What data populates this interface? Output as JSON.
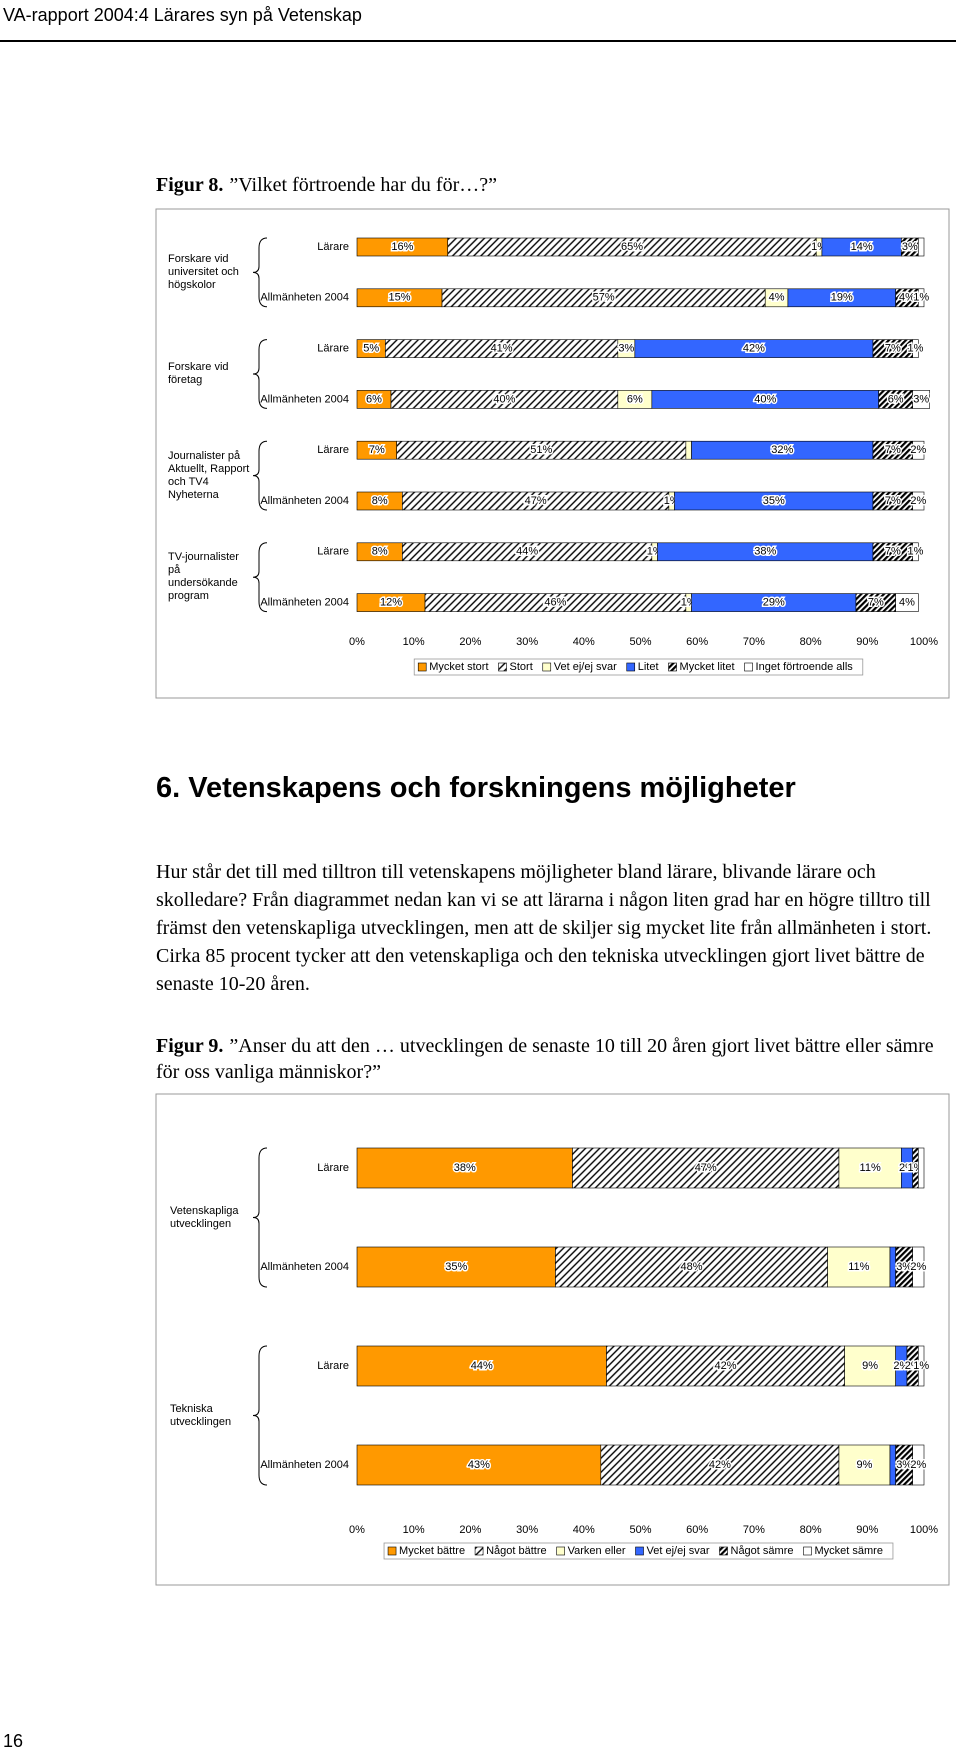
{
  "header": {
    "title": "VA-rapport 2004:4 Lärares syn på Vetenskap"
  },
  "figure_8": {
    "label": "Figur 8.",
    "caption": "”Vilket förtroende har du för…?”"
  },
  "chart_data": [
    {
      "type": "bar",
      "orientation": "horizontal",
      "stacked": true,
      "categories": [
        "Lärare",
        "Allmänheten 2004",
        "Lärare",
        "Allmänheten 2004",
        "Lärare",
        "Allmänheten 2004",
        "Lärare",
        "Allmänheten 2004"
      ],
      "group_labels": [
        "Forskare vid universitet och högskolor",
        "Forskare vid företag",
        "Journalister på Aktuellt, Rapport och TV4 Nyheterna",
        "TV-journalister på undersökande program"
      ],
      "series": [
        {
          "name": "Mycket stort",
          "color": "#ff9900",
          "values": [
            16,
            15,
            5,
            6,
            7,
            8,
            8,
            12
          ],
          "value_labels": [
            "16%",
            "15%",
            "5%",
            "6%",
            "7%",
            "8%",
            "8%",
            "12%"
          ]
        },
        {
          "name": "Stort",
          "color": "#000000",
          "pattern": "hatch",
          "values": [
            65,
            57,
            41,
            40,
            51,
            47,
            44,
            46
          ],
          "value_labels": [
            "65%",
            "57%",
            "41%",
            "40%",
            "51%",
            "47%",
            "44%",
            "46%"
          ]
        },
        {
          "name": "Vet ej/ej svar",
          "color": "#ffffcc",
          "values": [
            1,
            4,
            3,
            6,
            1,
            1,
            1,
            1
          ],
          "value_labels": [
            "1%",
            "4%",
            "3%",
            "6%",
            null,
            "1%",
            "1%",
            "1%"
          ]
        },
        {
          "name": "Litet",
          "color": "#3366ff",
          "values": [
            14,
            19,
            42,
            40,
            32,
            35,
            38,
            29
          ],
          "value_labels": [
            "14%",
            "19%",
            "42%",
            "40%",
            "32%",
            "35%",
            "38%",
            "29%"
          ]
        },
        {
          "name": "Mycket litet",
          "color": "#000000",
          "pattern": "hatch-dense",
          "values": [
            3,
            4,
            7,
            6,
            7,
            7,
            7,
            7
          ],
          "value_labels": [
            "3%",
            "4%",
            "7%",
            "6%",
            "7%",
            "7%",
            "7%",
            "7%"
          ]
        },
        {
          "name": "Inget förtroende alls",
          "color": "#ffffff",
          "values": [
            1,
            1,
            1,
            3,
            2,
            2,
            1,
            4
          ],
          "value_labels": [
            null,
            "1%",
            "1%",
            "3%",
            "2%",
            "2%",
            "1%",
            "4%"
          ]
        }
      ],
      "xlim": [
        0,
        100
      ],
      "xticks": [
        {
          "value": 0,
          "label": "0%"
        },
        {
          "value": 10,
          "label": "10%"
        },
        {
          "value": 20,
          "label": "20%"
        },
        {
          "value": 30,
          "label": "30%"
        },
        {
          "value": 40,
          "label": "40%"
        },
        {
          "value": 50,
          "label": "50%"
        },
        {
          "value": 60,
          "label": "60%"
        },
        {
          "value": 70,
          "label": "70%"
        },
        {
          "value": 80,
          "label": "80%"
        },
        {
          "value": 90,
          "label": "90%"
        },
        {
          "value": 100,
          "label": "100%"
        }
      ],
      "legend": "bottom"
    },
    {
      "type": "bar",
      "orientation": "horizontal",
      "stacked": true,
      "categories": [
        "Lärare",
        "Allmänheten 2004",
        "Lärare",
        "Allmänheten 2004"
      ],
      "group_labels": [
        "Vetenskapliga utvecklingen",
        "Tekniska utvecklingen"
      ],
      "series": [
        {
          "name": "Mycket bättre",
          "color": "#ff9900",
          "values": [
            38,
            35,
            44,
            43
          ],
          "value_labels": [
            "38%",
            "35%",
            "44%",
            "43%"
          ]
        },
        {
          "name": "Något bättre",
          "color": "#000000",
          "pattern": "hatch",
          "values": [
            47,
            48,
            42,
            42
          ],
          "value_labels": [
            "47%",
            "48%",
            "42%",
            "42%"
          ]
        },
        {
          "name": "Varken eller",
          "color": "#ffffcc",
          "values": [
            11,
            11,
            9,
            9
          ],
          "value_labels": [
            "11%",
            "11%",
            "9%",
            "9%"
          ]
        },
        {
          "name": "Vet ej/ej svar",
          "color": "#3366ff",
          "values": [
            2,
            1,
            2,
            1
          ],
          "value_labels": [
            "2%",
            null,
            "2%",
            null
          ]
        },
        {
          "name": "Något sämre",
          "color": "#000000",
          "pattern": "hatch-dense",
          "values": [
            1,
            3,
            2,
            3
          ],
          "value_labels": [
            "1%",
            "3%",
            "2%",
            "3%"
          ]
        },
        {
          "name": "Mycket sämre",
          "color": "#ffffff",
          "values": [
            1,
            2,
            1,
            2
          ],
          "value_labels": [
            null,
            "2%",
            "1%",
            "2%"
          ]
        }
      ],
      "xlim": [
        0,
        100
      ],
      "xticks": [
        {
          "value": 0,
          "label": "0%"
        },
        {
          "value": 10,
          "label": "10%"
        },
        {
          "value": 20,
          "label": "20%"
        },
        {
          "value": 30,
          "label": "30%"
        },
        {
          "value": 40,
          "label": "40%"
        },
        {
          "value": 50,
          "label": "50%"
        },
        {
          "value": 60,
          "label": "60%"
        },
        {
          "value": 70,
          "label": "70%"
        },
        {
          "value": 80,
          "label": "80%"
        },
        {
          "value": 90,
          "label": "90%"
        },
        {
          "value": 100,
          "label": "100%"
        }
      ],
      "legend": "bottom"
    }
  ],
  "section": {
    "heading": "6. Vetenskapens och forskningens möjligheter",
    "paragraph": "Hur står det till med tilltron till vetenskapens möjligheter bland lärare, blivande lärare och skolledare? Från diagrammet nedan kan vi se att lärarna i någon liten grad har en högre tilltro till främst den vetenskapliga utvecklingen, men att de skiljer sig mycket lite från allmänheten i stort. Cirka 85 procent tycker att den vetenskapliga och den tekniska utvecklingen gjort livet bättre de senaste 10-20 åren."
  },
  "figure_9": {
    "label": "Figur 9.",
    "caption": "”Anser du att den … utvecklingen de senaste 10 till 20 åren gjort livet bättre eller sämre för oss vanliga människor?”"
  },
  "page_number": "16"
}
